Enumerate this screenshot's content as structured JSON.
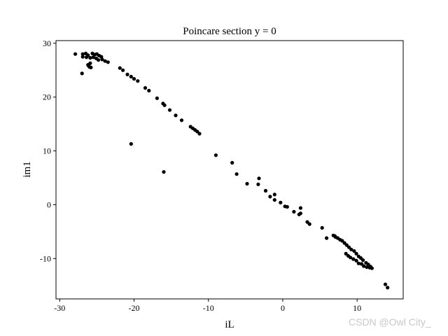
{
  "chart_data": {
    "type": "scatter",
    "title": "Poincare section y = 0",
    "xlabel": "iL",
    "ylabel": "im1",
    "xlim": [
      -30.5,
      16.2
    ],
    "ylim": [
      -17.5,
      30.5
    ],
    "xticks": [
      -30,
      -20,
      -10,
      0,
      10
    ],
    "xtick_labels": [
      "-30",
      "-20",
      "-10",
      "0",
      "10"
    ],
    "yticks": [
      -10,
      0,
      10,
      20,
      30
    ],
    "ytick_labels": [
      "-10",
      "0",
      "10",
      "20",
      "30"
    ],
    "grid": false,
    "marker_color": "#000000",
    "series": [
      {
        "points": [
          [
            -27.9,
            28.0
          ],
          [
            -26.9,
            28.0
          ],
          [
            -26.5,
            28.1
          ],
          [
            -26.2,
            27.8
          ],
          [
            -25.6,
            28.1
          ],
          [
            -25.3,
            27.9
          ],
          [
            -25.0,
            28.0
          ],
          [
            -24.7,
            27.7
          ],
          [
            -24.4,
            27.5
          ],
          [
            -26.9,
            27.5
          ],
          [
            -26.4,
            27.4
          ],
          [
            -25.9,
            27.3
          ],
          [
            -25.5,
            27.4
          ],
          [
            -25.1,
            27.2
          ],
          [
            -24.8,
            26.9
          ],
          [
            -24.3,
            27.0
          ],
          [
            -23.9,
            26.7
          ],
          [
            -23.5,
            26.5
          ],
          [
            -26.2,
            26.0
          ],
          [
            -26.0,
            25.6
          ],
          [
            -25.8,
            25.5
          ],
          [
            -26.1,
            25.8
          ],
          [
            -25.9,
            26.3
          ],
          [
            -27.0,
            24.4
          ],
          [
            -21.9,
            25.4
          ],
          [
            -21.5,
            25.0
          ],
          [
            -20.9,
            24.2
          ],
          [
            -20.4,
            23.8
          ],
          [
            -20.0,
            23.4
          ],
          [
            -19.5,
            23.0
          ],
          [
            -18.5,
            21.7
          ],
          [
            -18.0,
            21.2
          ],
          [
            -16.9,
            19.8
          ],
          [
            -16.1,
            18.8
          ],
          [
            -15.9,
            18.5
          ],
          [
            -15.2,
            17.6
          ],
          [
            -14.4,
            16.6
          ],
          [
            -13.6,
            15.7
          ],
          [
            -12.4,
            14.5
          ],
          [
            -12.1,
            14.2
          ],
          [
            -11.8,
            13.9
          ],
          [
            -11.5,
            13.6
          ],
          [
            -11.2,
            13.2
          ],
          [
            -20.4,
            11.3
          ],
          [
            -16.0,
            6.1
          ],
          [
            -9.0,
            9.2
          ],
          [
            -6.8,
            7.8
          ],
          [
            -6.2,
            5.7
          ],
          [
            -4.8,
            3.9
          ],
          [
            -3.2,
            4.9
          ],
          [
            -3.3,
            3.8
          ],
          [
            -2.3,
            2.6
          ],
          [
            -1.7,
            1.5
          ],
          [
            -1.1,
            1.9
          ],
          [
            -1.1,
            0.9
          ],
          [
            -0.3,
            0.4
          ],
          [
            0.3,
            -0.3
          ],
          [
            0.6,
            -0.4
          ],
          [
            1.5,
            -1.3
          ],
          [
            2.2,
            -1.8
          ],
          [
            2.4,
            -0.6
          ],
          [
            2.4,
            -1.6
          ],
          [
            3.3,
            -3.2
          ],
          [
            3.6,
            -3.6
          ],
          [
            5.3,
            -4.3
          ],
          [
            5.9,
            -6.2
          ],
          [
            6.8,
            -5.7
          ],
          [
            7.0,
            -5.8
          ],
          [
            7.1,
            -6.0
          ],
          [
            7.4,
            -6.2
          ],
          [
            7.7,
            -6.5
          ],
          [
            8.0,
            -6.7
          ],
          [
            8.3,
            -7.1
          ],
          [
            8.6,
            -7.5
          ],
          [
            8.9,
            -7.9
          ],
          [
            9.2,
            -8.3
          ],
          [
            9.6,
            -8.6
          ],
          [
            9.9,
            -9.1
          ],
          [
            10.2,
            -9.6
          ],
          [
            10.5,
            -9.9
          ],
          [
            10.8,
            -10.3
          ],
          [
            11.2,
            -10.8
          ],
          [
            11.5,
            -11.1
          ],
          [
            11.8,
            -11.5
          ],
          [
            12.0,
            -11.8
          ],
          [
            8.5,
            -9.1
          ],
          [
            8.8,
            -9.5
          ],
          [
            9.1,
            -9.8
          ],
          [
            9.5,
            -10.1
          ],
          [
            9.9,
            -10.4
          ],
          [
            10.2,
            -10.9
          ],
          [
            10.6,
            -11.0
          ],
          [
            10.9,
            -11.4
          ],
          [
            11.3,
            -11.6
          ],
          [
            11.7,
            -11.7
          ],
          [
            13.8,
            -14.8
          ],
          [
            14.1,
            -15.4
          ]
        ]
      }
    ]
  },
  "watermark": "CSDN @Owl City_"
}
